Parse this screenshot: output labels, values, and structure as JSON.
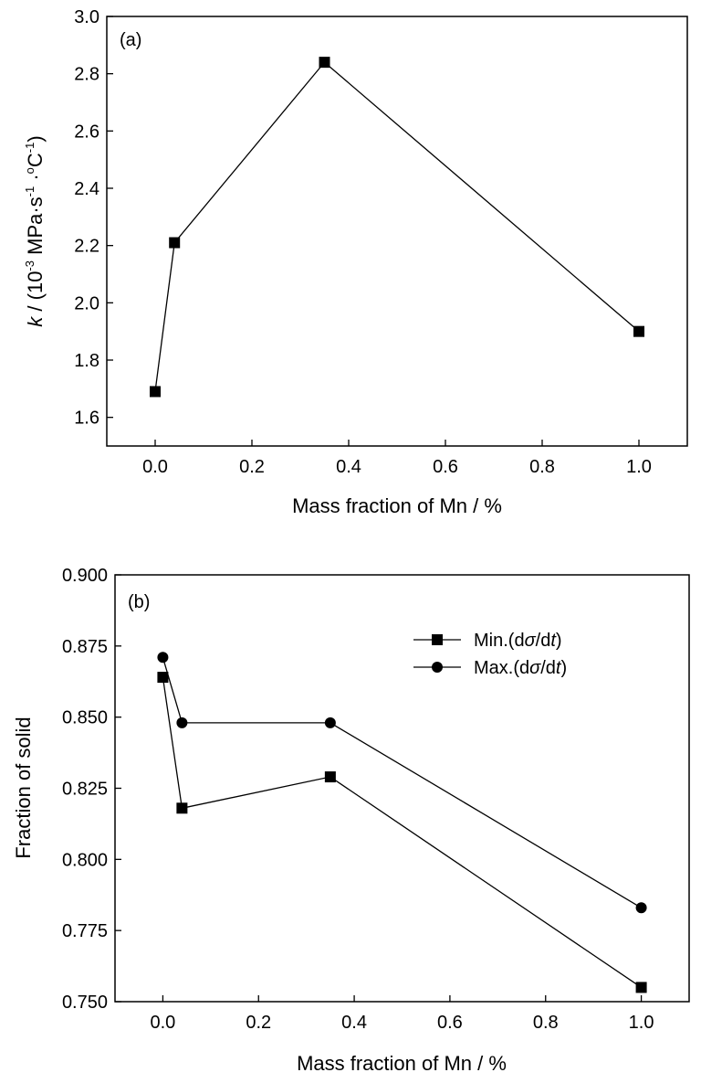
{
  "chart_data": [
    {
      "type": "line",
      "panel_label": "(a)",
      "xlabel": "Mass fraction of Mn / %",
      "ylabel": {
        "k": "k",
        "open": " / (10",
        "exp1": "-3",
        "mid": " MPa·s",
        "exp2": "-1",
        "dot": " ·",
        "deg": "o",
        "unit": "C",
        "exp3": "-1",
        "close": ")"
      },
      "xlim": [
        -0.1,
        1.1
      ],
      "ylim": [
        1.5,
        3.0
      ],
      "xticks": [
        0.0,
        0.2,
        0.4,
        0.6,
        0.8,
        1.0
      ],
      "xtick_labels": [
        "0.0",
        "0.2",
        "0.4",
        "0.6",
        "0.8",
        "1.0"
      ],
      "yticks": [
        1.6,
        1.8,
        2.0,
        2.2,
        2.4,
        2.6,
        2.8,
        3.0
      ],
      "ytick_labels": [
        "1.6",
        "1.8",
        "2.0",
        "2.2",
        "2.4",
        "2.6",
        "2.8",
        "3.0"
      ],
      "grid": false,
      "series": [
        {
          "marker": "square",
          "x": [
            0.0,
            0.04,
            0.35,
            1.0
          ],
          "y": [
            1.69,
            2.21,
            2.84,
            1.9
          ]
        }
      ]
    },
    {
      "type": "line",
      "panel_label": "(b)",
      "xlabel": "Mass fraction of Mn / %",
      "ylabel_text": "Fraction of solid",
      "xlim": [
        -0.1,
        1.1
      ],
      "ylim": [
        0.75,
        0.9
      ],
      "xticks": [
        0.0,
        0.2,
        0.4,
        0.6,
        0.8,
        1.0
      ],
      "xtick_labels": [
        "0.0",
        "0.2",
        "0.4",
        "0.6",
        "0.8",
        "1.0"
      ],
      "yticks": [
        0.75,
        0.775,
        0.8,
        0.825,
        0.85,
        0.875,
        0.9
      ],
      "ytick_labels": [
        "0.750",
        "0.775",
        "0.800",
        "0.825",
        "0.850",
        "0.875",
        "0.900"
      ],
      "grid": false,
      "legend_position": "top-right",
      "series": [
        {
          "name": "Min.(dσ/dt)",
          "name_parts": [
            "Min.(d",
            "σ",
            "/d",
            "t",
            ")"
          ],
          "marker": "square",
          "x": [
            0.0,
            0.04,
            0.35,
            1.0
          ],
          "y": [
            0.864,
            0.818,
            0.829,
            0.755
          ]
        },
        {
          "name": "Max.(dσ/dt)",
          "name_parts": [
            "Max.(d",
            "σ",
            "/d",
            "t",
            ")"
          ],
          "marker": "circle",
          "x": [
            0.0,
            0.04,
            0.35,
            1.0
          ],
          "y": [
            0.871,
            0.848,
            0.848,
            0.783
          ]
        }
      ]
    }
  ]
}
